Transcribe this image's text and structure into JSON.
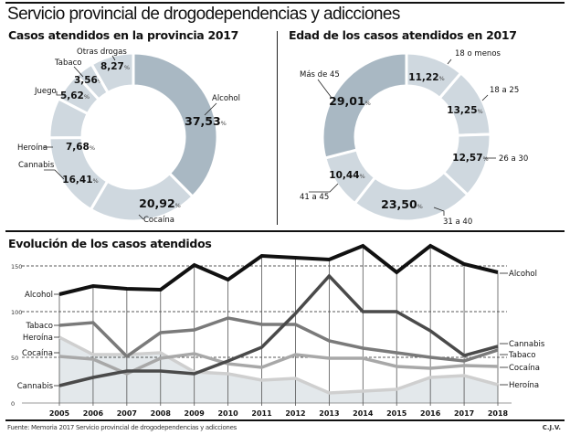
{
  "header": {
    "title": "Servicio provincial de drogodependencias y adicciones"
  },
  "footer": {
    "source": "Fuente: Memoria 2017 Servicio provincial de drogodependencias y adicciones",
    "credit": "C.J.V."
  },
  "colors": {
    "dark_slice": "#a9b8c3",
    "light_slice": "#cfd8df",
    "alcohol": "#111111",
    "cannabis": "#4a4a4a",
    "tabaco": "#7a7a7a",
    "cocaina": "#a8a8a8",
    "heroina": "#cfcfcf",
    "area_fill": "#e3e8eb"
  },
  "chart_data": [
    {
      "type": "pie",
      "donut": true,
      "title": "Casos atendidos en la provincia 2017",
      "unit": "%",
      "slices": [
        {
          "label": "Alcohol",
          "value": 37.53,
          "display": "37,53",
          "highlight": true
        },
        {
          "label": "Cocaína",
          "value": 20.92,
          "display": "20,92",
          "highlight": false
        },
        {
          "label": "Cannabis",
          "value": 16.41,
          "display": "16,41",
          "highlight": false
        },
        {
          "label": "Heroína",
          "value": 7.68,
          "display": "7,68",
          "highlight": false
        },
        {
          "label": "Juego",
          "value": 5.62,
          "display": "5,62",
          "highlight": false
        },
        {
          "label": "Tabaco",
          "value": 3.56,
          "display": "3,56",
          "highlight": false
        },
        {
          "label": "Otras drogas",
          "value": 8.27,
          "display": "8,27",
          "highlight": false
        }
      ]
    },
    {
      "type": "pie",
      "donut": true,
      "title": "Edad de los casos atendidos en 2017",
      "unit": "%",
      "slices": [
        {
          "label": "18 o menos",
          "value": 11.22,
          "display": "11,22",
          "highlight": false
        },
        {
          "label": "18 a 25",
          "value": 13.25,
          "display": "13,25",
          "highlight": false
        },
        {
          "label": "26 a 30",
          "value": 12.57,
          "display": "12,57",
          "highlight": false
        },
        {
          "label": "31 a 40",
          "value": 23.5,
          "display": "23,50",
          "highlight": false
        },
        {
          "label": "41 a 45",
          "value": 10.44,
          "display": "10,44",
          "highlight": false
        },
        {
          "label": "Más de 45",
          "value": 29.01,
          "display": "29,01",
          "highlight": true
        }
      ]
    },
    {
      "type": "line",
      "title": "Evolución de los casos atendidos",
      "xlabel": "",
      "ylabel": "",
      "x": [
        "2005",
        "2006",
        "2007",
        "2008",
        "2009",
        "2010",
        "2011",
        "2012",
        "2013",
        "2014",
        "2015",
        "2016",
        "2017",
        "2018"
      ],
      "ylim": [
        0,
        175
      ],
      "yticks": [
        0,
        50,
        100,
        150
      ],
      "grid": "dashed horizontal at 50, 100, 150",
      "legend": "inline labels at left and right ends of lines",
      "series": [
        {
          "name": "Alcohol",
          "values": [
            119,
            128,
            125,
            124,
            151,
            135,
            161,
            159,
            157,
            172,
            143,
            172,
            152,
            143
          ]
        },
        {
          "name": "Tabaco",
          "values": [
            85,
            88,
            51,
            77,
            80,
            93,
            86,
            86,
            68,
            60,
            55,
            50,
            46,
            58
          ]
        },
        {
          "name": "Heroína",
          "values": [
            72,
            53,
            53,
            55,
            34,
            32,
            25,
            27,
            11,
            13,
            15,
            28,
            30,
            20
          ]
        },
        {
          "name": "Cocaína",
          "values": [
            51,
            48,
            32,
            49,
            54,
            43,
            39,
            53,
            49,
            49,
            40,
            38,
            41,
            40
          ]
        },
        {
          "name": "Cannabis",
          "values": [
            19,
            28,
            35,
            35,
            32,
            46,
            61,
            98,
            139,
            100,
            100,
            79,
            52,
            62
          ]
        }
      ],
      "shaded_series": "Heroína",
      "left_labels": [
        "Alcohol",
        "Tabaco",
        "Heroína",
        "Cocaína",
        "Cannabis"
      ],
      "right_labels": [
        "Alcohol",
        "Cannabis",
        "Tabaco",
        "Cocaína",
        "Heroína"
      ]
    }
  ]
}
